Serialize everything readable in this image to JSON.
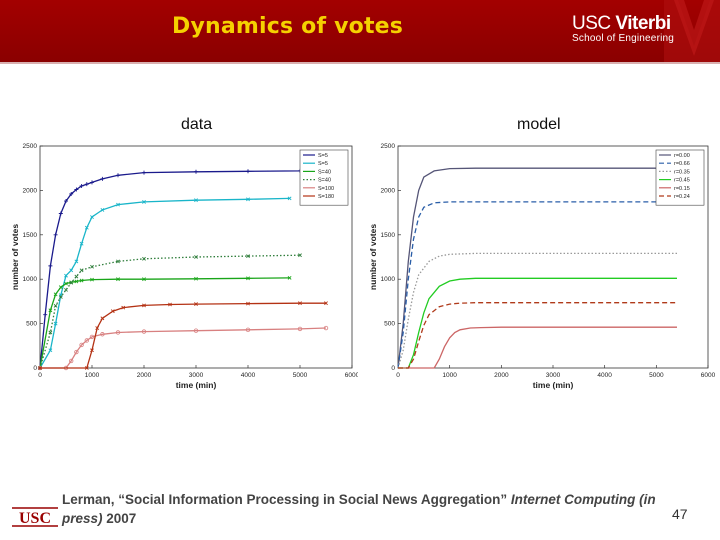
{
  "slide": {
    "title": "Dynamics of votes",
    "logo_line1_a": "USC",
    "logo_line1_b": "Viterbi",
    "logo_line2": "School of Engineering",
    "page_number": "47",
    "footer_logo": "USC",
    "citation_pre": "Lerman, “Social Information Processing in Social News Aggregation” ",
    "citation_journal": "Internet Computing (in press)",
    "citation_post": " 2007"
  },
  "colors": {
    "header_bg": "#9a0000",
    "title_text": "#f5d100",
    "usc_red": "#990000"
  },
  "chart_data": [
    {
      "type": "line",
      "title": "data",
      "xlabel": "time (min)",
      "ylabel": "number of votes",
      "xlim": [
        0,
        6000
      ],
      "ylim": [
        0,
        2500
      ],
      "xticks": [
        0,
        1000,
        2000,
        3000,
        4000,
        5000,
        6000
      ],
      "yticks": [
        0,
        500,
        1000,
        1500,
        2000,
        2500
      ],
      "legend_position": "top-right",
      "series": [
        {
          "name": "S=5",
          "color": "#1a1a8c",
          "style": "solid",
          "marker": "+",
          "x": [
            0,
            100,
            200,
            300,
            400,
            500,
            600,
            700,
            800,
            900,
            1000,
            1200,
            1500,
            2000,
            3000,
            4000,
            5000,
            5200
          ],
          "y": [
            0,
            600,
            1150,
            1500,
            1740,
            1880,
            1960,
            2010,
            2050,
            2070,
            2090,
            2130,
            2170,
            2200,
            2210,
            2215,
            2220,
            2225
          ]
        },
        {
          "name": "S=5",
          "color": "#19b5c9",
          "style": "solid",
          "marker": "x",
          "x": [
            0,
            200,
            300,
            400,
            500,
            600,
            700,
            800,
            900,
            1000,
            1200,
            1500,
            2000,
            3000,
            4000,
            4800
          ],
          "y": [
            0,
            200,
            500,
            820,
            1040,
            1100,
            1200,
            1400,
            1580,
            1700,
            1780,
            1840,
            1870,
            1890,
            1900,
            1910
          ]
        },
        {
          "name": "S=40",
          "color": "#19a519",
          "style": "solid",
          "marker": "x",
          "x": [
            0,
            200,
            300,
            400,
            500,
            600,
            700,
            800,
            1000,
            1500,
            2000,
            3000,
            4000,
            4800
          ],
          "y": [
            0,
            650,
            830,
            910,
            950,
            965,
            975,
            985,
            995,
            1000,
            1000,
            1005,
            1010,
            1015
          ]
        },
        {
          "name": "S=40",
          "color": "#2e7d3a",
          "style": "dotted",
          "marker": "*",
          "x": [
            0,
            200,
            300,
            400,
            500,
            600,
            700,
            800,
            1000,
            1500,
            2000,
            3000,
            4000,
            5000
          ],
          "y": [
            0,
            400,
            700,
            800,
            880,
            960,
            1030,
            1100,
            1140,
            1200,
            1230,
            1250,
            1260,
            1270
          ]
        },
        {
          "name": "S=100",
          "color": "#d88080",
          "style": "solid",
          "marker": "o",
          "x": [
            0,
            500,
            600,
            700,
            800,
            900,
            1000,
            1200,
            1500,
            2000,
            3000,
            4000,
            5000,
            5500
          ],
          "y": [
            0,
            0,
            80,
            180,
            260,
            310,
            350,
            380,
            400,
            410,
            420,
            430,
            440,
            450
          ]
        },
        {
          "name": "S=180",
          "color": "#b43214",
          "style": "solid",
          "marker": "x",
          "x": [
            0,
            900,
            1000,
            1100,
            1200,
            1400,
            1600,
            2000,
            2500,
            3000,
            4000,
            5000,
            5500
          ],
          "y": [
            0,
            0,
            200,
            450,
            560,
            640,
            680,
            705,
            715,
            720,
            725,
            730,
            730
          ]
        }
      ]
    },
    {
      "type": "line",
      "title": "model",
      "xlabel": "time (min)",
      "ylabel": "number of votes",
      "xlim": [
        0,
        6000
      ],
      "ylim": [
        0,
        2500
      ],
      "xticks": [
        0,
        1000,
        2000,
        3000,
        4000,
        5000,
        6000
      ],
      "yticks": [
        0,
        500,
        1000,
        1500,
        2000,
        2500
      ],
      "legend_position": "top-right",
      "series": [
        {
          "name": "r=0.00",
          "color": "#555577",
          "style": "solid",
          "x": [
            0,
            100,
            200,
            300,
            400,
            500,
            700,
            1000,
            1500,
            2000,
            3000,
            5400
          ],
          "y": [
            0,
            500,
            1200,
            1700,
            2000,
            2150,
            2220,
            2245,
            2250,
            2250,
            2250,
            2250
          ]
        },
        {
          "name": "r=0.66",
          "color": "#2a5ea8",
          "style": "dashed",
          "x": [
            0,
            100,
            200,
            300,
            400,
            500,
            700,
            1000,
            1500,
            2000,
            3000,
            5400
          ],
          "y": [
            0,
            400,
            1000,
            1450,
            1700,
            1810,
            1860,
            1870,
            1870,
            1870,
            1870,
            1870
          ]
        },
        {
          "name": "r=0.35",
          "color": "#999999",
          "style": "dotted",
          "x": [
            0,
            100,
            200,
            300,
            400,
            600,
            800,
            1000,
            1500,
            2000,
            3000,
            5400
          ],
          "y": [
            0,
            200,
            550,
            850,
            1050,
            1200,
            1260,
            1280,
            1290,
            1290,
            1290,
            1290
          ]
        },
        {
          "name": "r=0.45",
          "color": "#22cc22",
          "style": "solid",
          "x": [
            0,
            200,
            300,
            400,
            500,
            600,
            800,
            1000,
            1200,
            1500,
            2000,
            3000,
            5400
          ],
          "y": [
            0,
            0,
            150,
            400,
            620,
            780,
            920,
            980,
            1000,
            1010,
            1010,
            1010,
            1010
          ]
        },
        {
          "name": "r=0.15",
          "color": "#cc6666",
          "style": "solid",
          "x": [
            0,
            700,
            800,
            900,
            1000,
            1100,
            1200,
            1400,
            1600,
            2000,
            3000,
            5400
          ],
          "y": [
            0,
            0,
            100,
            240,
            340,
            400,
            430,
            450,
            455,
            460,
            460,
            460
          ]
        },
        {
          "name": "r=0.24",
          "color": "#b03a1a",
          "style": "dashed",
          "x": [
            0,
            200,
            300,
            400,
            500,
            600,
            800,
            1000,
            1200,
            1500,
            2000,
            3000,
            5400
          ],
          "y": [
            0,
            0,
            100,
            300,
            480,
            600,
            690,
            720,
            730,
            735,
            735,
            735,
            735
          ]
        }
      ]
    }
  ]
}
